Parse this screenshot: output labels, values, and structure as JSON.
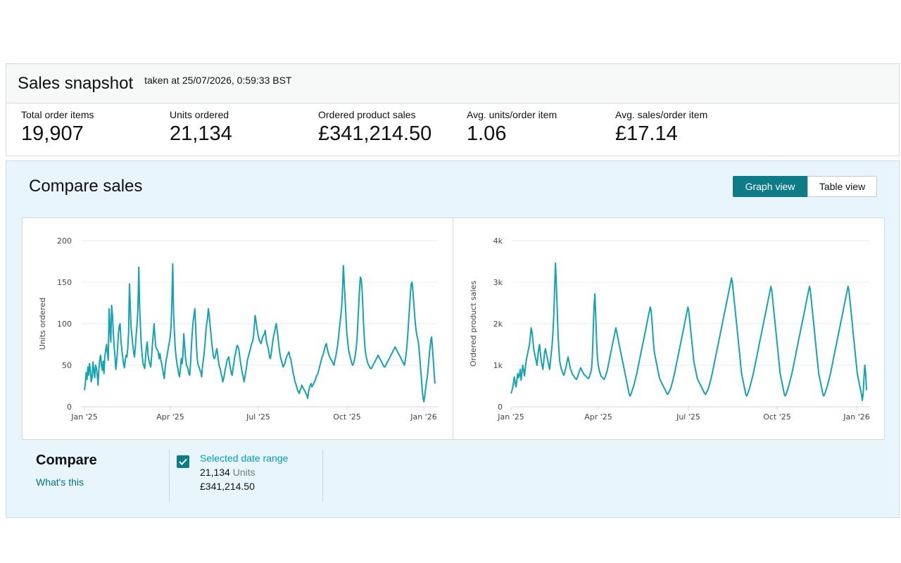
{
  "snapshot": {
    "title": "Sales snapshot",
    "taken_at": "taken at 25/07/2026, 0:59:33 BST",
    "metrics": [
      {
        "label": "Total order items",
        "value": "19,907"
      },
      {
        "label": "Units ordered",
        "value": "21,134"
      },
      {
        "label": "Ordered product sales",
        "value": "£341,214.50"
      },
      {
        "label": "Avg. units/order item",
        "value": "1.06"
      },
      {
        "label": "Avg. sales/order item",
        "value": "£17.14"
      }
    ]
  },
  "compare": {
    "title": "Compare sales",
    "graph_view": "Graph view",
    "table_view": "Table view",
    "active_view": "Graph view",
    "heading": "Compare",
    "whats_this": "What's this",
    "selected_label": "Selected date range",
    "selected_checked": true,
    "selected_units_value": "21,134",
    "selected_units_suffix": "Units",
    "selected_sales": "£341,214.50"
  },
  "colors": {
    "line": "#14a3b0",
    "accent": "#0e7c86",
    "link": "#007185",
    "panel": "#e8f5fd"
  },
  "chart_data": [
    {
      "type": "line",
      "title": "",
      "xlabel": "",
      "ylabel": "Units ordered",
      "x_ticks": [
        "Jan '25",
        "Apr '25",
        "Jul '25",
        "Oct '25",
        "Jan '26"
      ],
      "y_ticks": [
        "0",
        "50",
        "100",
        "150",
        "200"
      ],
      "ylim": [
        0,
        200
      ],
      "xlim": [
        "2025-01-01",
        "2026-01-05"
      ],
      "grid": true,
      "series": [
        {
          "values": [
            20,
            28,
            41,
            33,
            48,
            38,
            52,
            44,
            30,
            36,
            54,
            43,
            35,
            50,
            47,
            39,
            26,
            45,
            57,
            62,
            50,
            44,
            55,
            40,
            60,
            68,
            75,
            65,
            56,
            118,
            95,
            78,
            122,
            110,
            90,
            72,
            60,
            45,
            55,
            70,
            88,
            97,
            100,
            80,
            68,
            60,
            52,
            47,
            55,
            62,
            60,
            70,
            90,
            148,
            120,
            95,
            84,
            74,
            65,
            60,
            72,
            88,
            100,
            120,
            168,
            120,
            95,
            74,
            62,
            52,
            49,
            46,
            60,
            72,
            78,
            62,
            56,
            52,
            48,
            60,
            74,
            88,
            100,
            84,
            72,
            70,
            68,
            66,
            58,
            64,
            56,
            52,
            46,
            40,
            34,
            46,
            55,
            60,
            66,
            72,
            78,
            84,
            96,
            128,
            172,
            112,
            90,
            70,
            60,
            52,
            46,
            40,
            36,
            46,
            58,
            52,
            62,
            88,
            74,
            60,
            52,
            48,
            46,
            40,
            38,
            52,
            72,
            90,
            102,
            110,
            118,
            96,
            72,
            56,
            50,
            48,
            44,
            42,
            36,
            48,
            56,
            64,
            76,
            90,
            100,
            106,
            118,
            110,
            98,
            88,
            76,
            68,
            60,
            58,
            60,
            66,
            70,
            62,
            54,
            48,
            46,
            40,
            36,
            30,
            34,
            40,
            46,
            50,
            56,
            58,
            60,
            52,
            46,
            40,
            38,
            46,
            52,
            60,
            64,
            70,
            74,
            72,
            68,
            60,
            52,
            46,
            40,
            36,
            30,
            36,
            42,
            48,
            56,
            60,
            64,
            68,
            72,
            76,
            78,
            84,
            96,
            110,
            104,
            96,
            90,
            84,
            80,
            78,
            76,
            80,
            84,
            86,
            88,
            92,
            82,
            76,
            72,
            68,
            60,
            58,
            64,
            72,
            80,
            86,
            90,
            96,
            100,
            92,
            84,
            74,
            66,
            60,
            56,
            52,
            48,
            50,
            52,
            56,
            60,
            62,
            64,
            66,
            60,
            58,
            52,
            46,
            40,
            36,
            30,
            28,
            24,
            20,
            18,
            16,
            20,
            22,
            26,
            24,
            22,
            20,
            18,
            16,
            14,
            10,
            18,
            22,
            26,
            28,
            24,
            26,
            28,
            30,
            32,
            36,
            38,
            40,
            44,
            48,
            52,
            56,
            60,
            62,
            66,
            70,
            74,
            76,
            70,
            66,
            62,
            60,
            58,
            56,
            54,
            52,
            50,
            56,
            60,
            66,
            72,
            80,
            90,
            100,
            110,
            120,
            140,
            170,
            150,
            130,
            110,
            90,
            80,
            70,
            64,
            60,
            56,
            52,
            50,
            52,
            56,
            62,
            70,
            80,
            100,
            120,
            140,
            156,
            154,
            142,
            120,
            96,
            78,
            66,
            60,
            56,
            52,
            50,
            48,
            46,
            46,
            48,
            50,
            52,
            54,
            56,
            58,
            60,
            62,
            60,
            58,
            56,
            54,
            52,
            50,
            48,
            48,
            50,
            52,
            54,
            56,
            58,
            60,
            62,
            64,
            66,
            68,
            70,
            72,
            70,
            68,
            66,
            64,
            62,
            60,
            58,
            56,
            54,
            52,
            50,
            56,
            64,
            74,
            88,
            104,
            120,
            136,
            148,
            150,
            140,
            124,
            110,
            98,
            90,
            84,
            80,
            72,
            60,
            46,
            34,
            20,
            10,
            6,
            14,
            22,
            30,
            36,
            48,
            60,
            70,
            80,
            84,
            70,
            56,
            40,
            28
          ]
        }
      ]
    },
    {
      "type": "line",
      "title": "",
      "xlabel": "",
      "ylabel": "Ordered product sales",
      "x_ticks": [
        "Jan '25",
        "Apr '25",
        "Jul '25",
        "Oct '25",
        "Jan '26"
      ],
      "y_ticks": [
        "0",
        "1k",
        "2k",
        "3k",
        "4k"
      ],
      "ylim": [
        0,
        4000
      ],
      "xlim": [
        "2025-01-01",
        "2026-01-05"
      ],
      "grid": true,
      "series": [
        {
          "values": [
            320,
            380,
            460,
            600,
            720,
            560,
            480,
            640,
            800,
            700,
            760,
            900,
            640,
            820,
            1000,
            880,
            740,
            920,
            1100,
            1200,
            1300,
            1400,
            1500,
            1700,
            1900,
            1800,
            1600,
            1400,
            1300,
            1200,
            1100,
            1000,
            1200,
            1400,
            1500,
            1300,
            1100,
            1000,
            900,
            1100,
            1300,
            1400,
            1300,
            1200,
            1100,
            1000,
            900,
            1100,
            1300,
            1500,
            1800,
            2200,
            2800,
            3460,
            3000,
            2400,
            1800,
            1400,
            1100,
            1000,
            900,
            860,
            800,
            760,
            820,
            900,
            1000,
            1100,
            1200,
            1100,
            1000,
            900,
            860,
            800,
            760,
            740,
            700,
            680,
            660,
            700,
            760,
            820,
            880,
            940,
            900,
            860,
            820,
            780,
            760,
            740,
            720,
            700,
            680,
            700,
            760,
            820,
            900,
            1200,
            1800,
            2400,
            2720,
            2200,
            1600,
            1200,
            1000,
            900,
            820,
            760,
            720,
            700,
            680,
            660,
            700,
            760,
            820,
            900,
            1000,
            1100,
            1200,
            1300,
            1400,
            1500,
            1600,
            1700,
            1800,
            1900,
            1800,
            1700,
            1600,
            1500,
            1400,
            1300,
            1200,
            1100,
            1000,
            900,
            800,
            700,
            600,
            500,
            400,
            300,
            260,
            300,
            360,
            420,
            480,
            560,
            640,
            720,
            800,
            900,
            1000,
            1100,
            1200,
            1300,
            1400,
            1500,
            1600,
            1700,
            1800,
            1900,
            2000,
            2100,
            2200,
            2300,
            2400,
            2320,
            2100,
            1800,
            1500,
            1300,
            1200,
            1100,
            1000,
            900,
            800,
            700,
            640,
            600,
            560,
            520,
            480,
            440,
            400,
            360,
            320,
            300,
            340,
            380,
            420,
            480,
            560,
            640,
            720,
            800,
            900,
            1000,
            1100,
            1200,
            1300,
            1400,
            1500,
            1600,
            1700,
            1800,
            1900,
            2000,
            2100,
            2200,
            2300,
            2400,
            2300,
            2100,
            1900,
            1700,
            1500,
            1300,
            1100,
            1000,
            900,
            800,
            700,
            640,
            600,
            560,
            520,
            480,
            440,
            400,
            360,
            320,
            300,
            340,
            380,
            420,
            480,
            560,
            640,
            720,
            800,
            900,
            1000,
            1100,
            1200,
            1300,
            1400,
            1500,
            1600,
            1700,
            1800,
            1900,
            2000,
            2100,
            2200,
            2300,
            2400,
            2500,
            2600,
            2700,
            2800,
            2900,
            3000,
            3100,
            3000,
            2800,
            2600,
            2400,
            2200,
            2000,
            1800,
            1600,
            1400,
            1200,
            1000,
            800,
            700,
            600,
            500,
            400,
            300,
            260,
            300,
            360,
            420,
            480,
            560,
            640,
            720,
            800,
            900,
            1000,
            1100,
            1200,
            1300,
            1400,
            1500,
            1600,
            1700,
            1800,
            1900,
            2000,
            2100,
            2200,
            2300,
            2400,
            2500,
            2600,
            2700,
            2800,
            2900,
            2800,
            2600,
            2400,
            2200,
            2000,
            1800,
            1600,
            1400,
            1200,
            1000,
            800,
            700,
            600,
            500,
            400,
            300,
            260,
            300,
            360,
            420,
            480,
            560,
            640,
            720,
            800,
            900,
            1000,
            1100,
            1200,
            1300,
            1400,
            1500,
            1600,
            1700,
            1800,
            1900,
            2000,
            2100,
            2200,
            2300,
            2400,
            2500,
            2600,
            2700,
            2800,
            2900,
            2800,
            2600,
            2400,
            2200,
            2000,
            1800,
            1600,
            1400,
            1200,
            1000,
            800,
            700,
            600,
            500,
            400,
            300,
            260,
            300,
            360,
            420,
            480,
            560,
            640,
            720,
            800,
            900,
            1000,
            1100,
            1200,
            1300,
            1400,
            1500,
            1600,
            1700,
            1800,
            1900,
            2000,
            2100,
            2200,
            2300,
            2400,
            2500,
            2600,
            2700,
            2800,
            2900,
            2800,
            2600,
            2400,
            2200,
            2000,
            1800,
            1600,
            1400,
            1200,
            1000,
            800,
            700,
            600,
            500,
            400,
            300,
            150,
            300,
            700,
            1000,
            800,
            400
          ]
        }
      ]
    }
  ]
}
